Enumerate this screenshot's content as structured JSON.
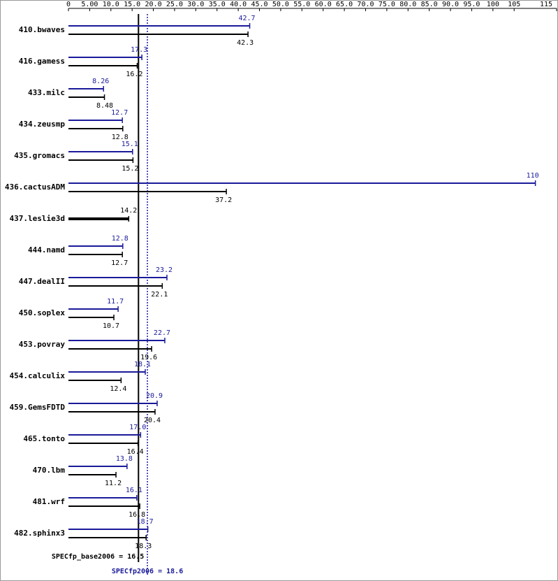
{
  "chart_data": {
    "type": "hbar-range",
    "categories": [
      "410.bwaves",
      "416.gamess",
      "433.milc",
      "434.zeusmp",
      "435.gromacs",
      "436.cactusADM",
      "437.leslie3d",
      "444.namd",
      "447.dealII",
      "450.soplex",
      "453.povray",
      "454.calculix",
      "459.GemsFDTD",
      "465.tonto",
      "470.lbm",
      "481.wrf",
      "482.sphinx3"
    ],
    "series": [
      {
        "color": "#1a1a9a",
        "values": [
          42.7,
          17.3,
          8.26,
          12.7,
          15.1,
          110,
          null,
          12.8,
          23.2,
          11.7,
          22.7,
          18.1,
          20.9,
          17.0,
          13.8,
          16.1,
          18.7
        ],
        "value_labels": [
          "42.7",
          "17.3",
          "8.26",
          "12.7",
          "15.1",
          "110",
          null,
          "12.8",
          "23.2",
          "11.7",
          "22.7",
          "18.1",
          "20.9",
          "17.0",
          "13.8",
          "16.1",
          "18.7"
        ]
      },
      {
        "color": "#000000",
        "values": [
          42.3,
          16.2,
          8.48,
          12.8,
          15.2,
          37.2,
          14.2,
          12.7,
          22.1,
          10.7,
          19.6,
          12.4,
          20.4,
          16.4,
          11.2,
          16.8,
          18.3
        ]
      }
    ],
    "xlim": [
      0,
      115
    ],
    "xticks": [
      0,
      {
        "value": 5,
        "label": "5.00"
      },
      {
        "value": 10,
        "label": "10.0"
      },
      {
        "value": 15,
        "label": "15.0"
      },
      {
        "value": 20,
        "label": "20.0"
      },
      {
        "value": 25,
        "label": "25.0"
      },
      {
        "value": 30,
        "label": "30.0"
      },
      {
        "value": 35,
        "label": "35.0"
      },
      {
        "value": 40,
        "label": "40.0"
      },
      {
        "value": 45,
        "label": "45.0"
      },
      {
        "value": 50,
        "label": "50.0"
      },
      {
        "value": 55,
        "label": "55.0"
      },
      {
        "value": 60,
        "label": "60.0"
      },
      {
        "value": 65,
        "label": "65.0"
      },
      {
        "value": 70,
        "label": "70.0"
      },
      {
        "value": 75,
        "label": "75.0"
      },
      {
        "value": 80,
        "label": "80.0"
      },
      {
        "value": 85,
        "label": "85.0"
      },
      {
        "value": 90,
        "label": "90.0"
      },
      {
        "value": 95,
        "label": "95.0"
      },
      100,
      105,
      115
    ],
    "base_metric": {
      "label": "SPECfp_base2006 = 16.5",
      "value": 16.5,
      "color": "#000000"
    },
    "peak_metric": {
      "label": "SPECfp2006 = 18.6",
      "value": 18.6,
      "color": "#1a1a9a"
    }
  }
}
